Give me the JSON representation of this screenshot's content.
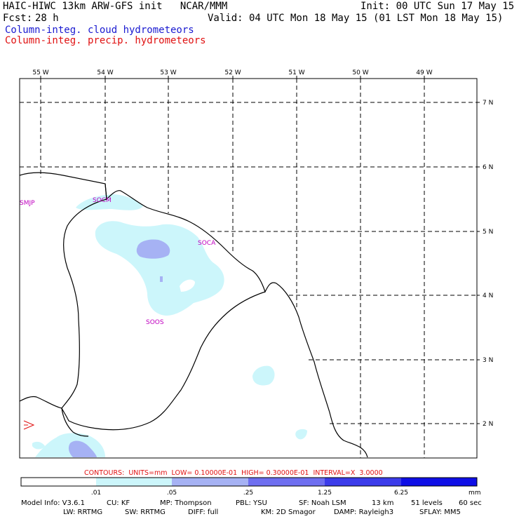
{
  "header": {
    "title": "HAIC-HIWC 13km ARW-GFS init   NCAR/MMM",
    "init": "Init: 00 UTC Sun 17 May 15",
    "fcst_label": "Fcst:",
    "fcst_value": "28 h",
    "valid": "Valid: 04 UTC Mon 18 May 15 (01 LST Mon 18 May 15)",
    "cloud_field": "Column-integ. cloud hydrometeors",
    "precip_field": "Column-integ. precip. hydrometeors"
  },
  "map": {
    "lon_labels": [
      "55 W",
      "54 W",
      "53 W",
      "52 W",
      "51 W",
      "50 W",
      "49 W"
    ],
    "lat_labels": [
      "7 N",
      "6 N",
      "5 N",
      "4 N",
      "3 N",
      "2 N"
    ],
    "stations": [
      "SMJP",
      "SOCM",
      "SOCA",
      "SOOS"
    ]
  },
  "contours_info": "CONTOURS:  UNITS=mm  LOW= 0.10000E-01  HIGH= 0.30000E-01  INTERVAL=X  3.0000",
  "colorbar": {
    "ticks": [
      ".01",
      ".05",
      ".25",
      "1.25",
      "6.25"
    ],
    "unit": "mm",
    "colors": [
      "#ffffff",
      "#ccf6fb",
      "#a6b2f4",
      "#6e6ef0",
      "#3c3cea",
      "#0e0ee6"
    ]
  },
  "footer": {
    "line1": [
      "Model Info: V3.6.1",
      "CU: KF",
      "MP: Thompson",
      "PBL: YSU",
      "SF: Noah LSM",
      "13 km",
      "51 levels",
      "60 sec"
    ],
    "line2": [
      "LW: RRTMG",
      "SW: RRTMG",
      "DIFF: full",
      "KM: 2D Smagor",
      "DAMP: Rayleigh3",
      "SFLAY: MM5"
    ]
  }
}
